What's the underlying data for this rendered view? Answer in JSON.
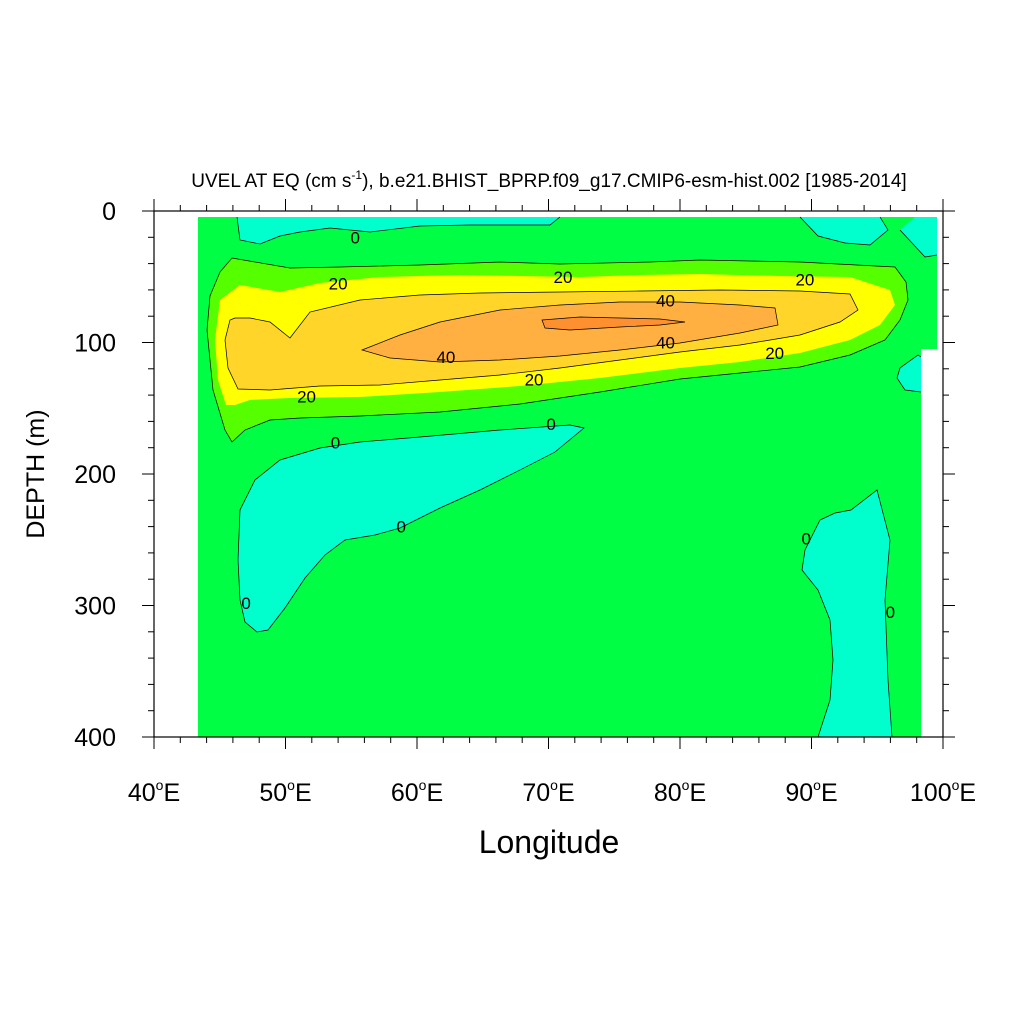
{
  "chart_data": {
    "type": "contour",
    "title": "UVEL AT EQ (cm s-1), b.e21.BHIST_BPRP.f09_g17.CMIP6-esm-hist.002 [1985-2014]",
    "title_parts": {
      "prefix": "UVEL AT EQ (cm s",
      "superscript": "-1",
      "suffix": "), b.e21.BHIST_BPRP.f09_g17.CMIP6-esm-hist.002 [1985-2014]"
    },
    "xlabel": "Longitude",
    "ylabel": "DEPTH (m)",
    "x_ticks": [
      {
        "value": 40,
        "label": "40",
        "suffix": "E"
      },
      {
        "value": 50,
        "label": "50",
        "suffix": "E"
      },
      {
        "value": 60,
        "label": "60",
        "suffix": "E"
      },
      {
        "value": 70,
        "label": "70",
        "suffix": "E"
      },
      {
        "value": 80,
        "label": "80",
        "suffix": "E"
      },
      {
        "value": 90,
        "label": "90",
        "suffix": "E"
      },
      {
        "value": 100,
        "label": "100",
        "suffix": "E"
      }
    ],
    "y_ticks": [
      {
        "value": 0,
        "label": "0"
      },
      {
        "value": 100,
        "label": "100"
      },
      {
        "value": 200,
        "label": "200"
      },
      {
        "value": 300,
        "label": "300"
      },
      {
        "value": 400,
        "label": "400"
      }
    ],
    "xlim": [
      40,
      100
    ],
    "ylim": [
      0,
      400
    ],
    "y_reversed": true,
    "contour_levels": [
      0,
      20,
      40
    ],
    "fill_colors": {
      "negative": "#00ffcc",
      "0_to_20": "#00ff44",
      "20_to_30": "#55ff00",
      "30_to_40": "#ffff00",
      "40_to_50": "#ffd52a",
      "50_to_60": "#ffb040",
      "above_60": "#ff9030",
      "missing": "#ffffff"
    },
    "contour_labels": [
      {
        "text": "0",
        "lon": 55.3,
        "depth": 20
      },
      {
        "text": "20",
        "lon": 54.0,
        "depth": 55
      },
      {
        "text": "20",
        "lon": 71.1,
        "depth": 50
      },
      {
        "text": "20",
        "lon": 89.5,
        "depth": 52
      },
      {
        "text": "40",
        "lon": 78.9,
        "depth": 68
      },
      {
        "text": "40",
        "lon": 78.9,
        "depth": 100
      },
      {
        "text": "40",
        "lon": 62.2,
        "depth": 111
      },
      {
        "text": "20",
        "lon": 87.2,
        "depth": 108
      },
      {
        "text": "20",
        "lon": 68.9,
        "depth": 128
      },
      {
        "text": "20",
        "lon": 51.6,
        "depth": 141
      },
      {
        "text": "0",
        "lon": 70.2,
        "depth": 162
      },
      {
        "text": "0",
        "lon": 53.8,
        "depth": 176
      },
      {
        "text": "0",
        "lon": 58.8,
        "depth": 240
      },
      {
        "text": "0",
        "lon": 89.6,
        "depth": 249
      },
      {
        "text": "0",
        "lon": 47.0,
        "depth": 298
      },
      {
        "text": "0",
        "lon": 96.0,
        "depth": 305
      }
    ]
  }
}
